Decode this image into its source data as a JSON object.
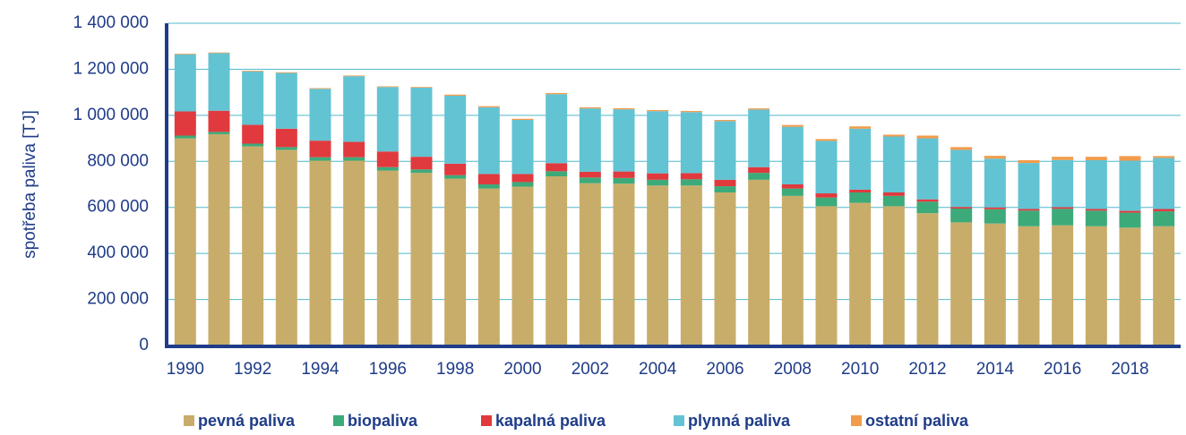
{
  "chart_data": {
    "type": "stacked_bar",
    "y_label": "spotřeba paliva [TJ]",
    "categories": [
      "1990",
      null,
      "1992",
      null,
      "1994",
      null,
      "1996",
      null,
      "1998",
      null,
      "2000",
      null,
      "2002",
      null,
      "2004",
      null,
      "2006",
      null,
      "2008",
      null,
      "2010",
      null,
      "2012",
      null,
      "2014",
      null,
      "2016",
      null,
      "2018",
      null
    ],
    "series": [
      {
        "name": "pevná paliva",
        "color": "#c8ad6a",
        "values": [
          900000,
          918000,
          865000,
          850000,
          803000,
          803000,
          760000,
          750000,
          725000,
          682000,
          690000,
          735000,
          705000,
          703000,
          695000,
          695000,
          665000,
          720000,
          650000,
          605000,
          620000,
          605000,
          575000,
          535000,
          530000,
          518000,
          522000,
          518000,
          512000,
          518000
        ]
      },
      {
        "name": "biopaliva",
        "color": "#3daa7a",
        "values": [
          12000,
          10000,
          12000,
          12000,
          15000,
          15000,
          15000,
          15000,
          15000,
          18000,
          20000,
          22000,
          25000,
          25000,
          25000,
          27000,
          27000,
          30000,
          32000,
          38000,
          45000,
          45000,
          50000,
          60000,
          62000,
          68000,
          72000,
          68000,
          65000,
          65000
        ]
      },
      {
        "name": "kapalná paliva",
        "color": "#e03a3e",
        "values": [
          105000,
          92000,
          82000,
          80000,
          72000,
          67000,
          68000,
          55000,
          50000,
          45000,
          35000,
          35000,
          25000,
          28000,
          28000,
          27000,
          28000,
          25000,
          18000,
          18000,
          12000,
          15000,
          10000,
          7000,
          8000,
          7000,
          7000,
          7000,
          8000,
          10000
        ]
      },
      {
        "name": "plynná paliva",
        "color": "#62c3d3",
        "values": [
          248000,
          250000,
          232000,
          242000,
          225000,
          285000,
          280000,
          300000,
          295000,
          290000,
          235000,
          300000,
          275000,
          270000,
          270000,
          265000,
          255000,
          250000,
          250000,
          228000,
          265000,
          243000,
          265000,
          248000,
          212000,
          200000,
          205000,
          212000,
          218000,
          222000
        ]
      },
      {
        "name": "ostatní paliva",
        "color": "#f29c4c",
        "values": [
          3000,
          3000,
          3000,
          3000,
          3000,
          3000,
          3000,
          3000,
          5000,
          5000,
          5000,
          5000,
          5000,
          5000,
          5000,
          5000,
          5000,
          5000,
          8000,
          8000,
          10000,
          8000,
          12000,
          12000,
          12000,
          12000,
          14000,
          15000,
          20000,
          8000
        ]
      }
    ],
    "ylim": [
      0,
      1400000
    ],
    "yticks": [
      0,
      {
        "value": 200000,
        "label": "200 000"
      },
      {
        "value": 400000,
        "label": "400 000"
      },
      {
        "value": 600000,
        "label": "600 000"
      },
      {
        "value": 800000,
        "label": "800 000"
      },
      {
        "value": 1000000,
        "label": "1 000 000"
      },
      {
        "value": 1200000,
        "label": "1 200 000"
      },
      {
        "value": 1400000,
        "label": "1 400 000"
      }
    ],
    "grid": true,
    "legend": "bottom"
  }
}
